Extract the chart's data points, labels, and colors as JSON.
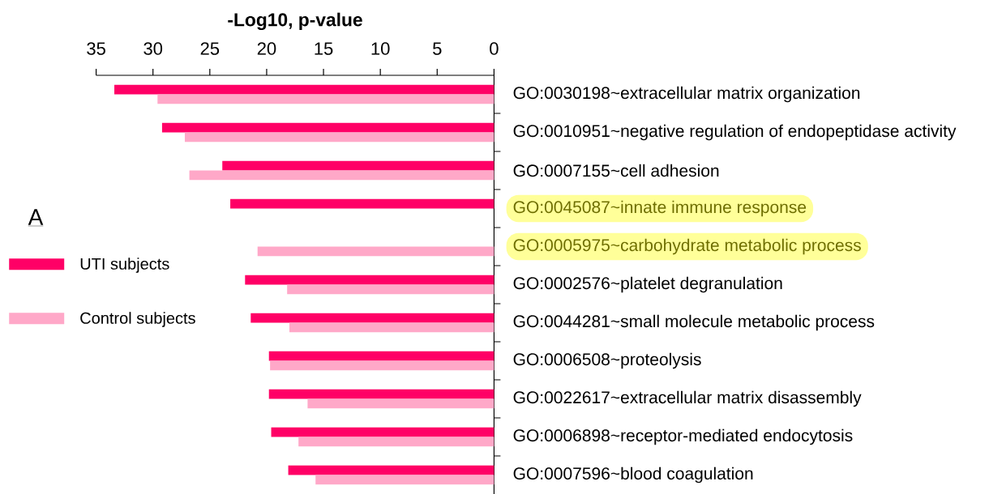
{
  "chart_data": {
    "type": "bar",
    "orientation": "horizontal",
    "xlabel": "-Log10, p-value",
    "annotations": [
      "A"
    ],
    "categories": [
      "GO:0030198~extracellular matrix organization",
      "GO:0010951~negative regulation of endopeptidase activity",
      "GO:0007155~cell adhesion",
      "GO:0045087~innate immune response",
      "GO:0005975~carbohydrate metabolic process",
      "GO:0002576~platelet degranulation",
      "GO:0044281~small molecule metabolic process",
      "GO:0006508~proteolysis",
      "GO:0022617~extracellular matrix disassembly",
      "GO:0006898~receptor-mediated endocytosis",
      "GO:0007596~blood coagulation"
    ],
    "series": [
      {
        "name": "UTI subjects",
        "color": "#ff0066",
        "values": [
          33.4,
          29.2,
          23.9,
          23.2,
          null,
          21.9,
          21.4,
          19.8,
          19.8,
          19.6,
          18.1
        ]
      },
      {
        "name": "Control subjects",
        "color": "#ffa8c8",
        "values": [
          29.6,
          27.2,
          26.8,
          null,
          20.8,
          18.2,
          18.0,
          19.7,
          16.4,
          17.2,
          15.7
        ]
      }
    ],
    "xlim": [
      35,
      0
    ],
    "xticks": [
      35,
      30,
      25,
      20,
      15,
      10,
      5,
      0
    ],
    "legend": "left"
  }
}
